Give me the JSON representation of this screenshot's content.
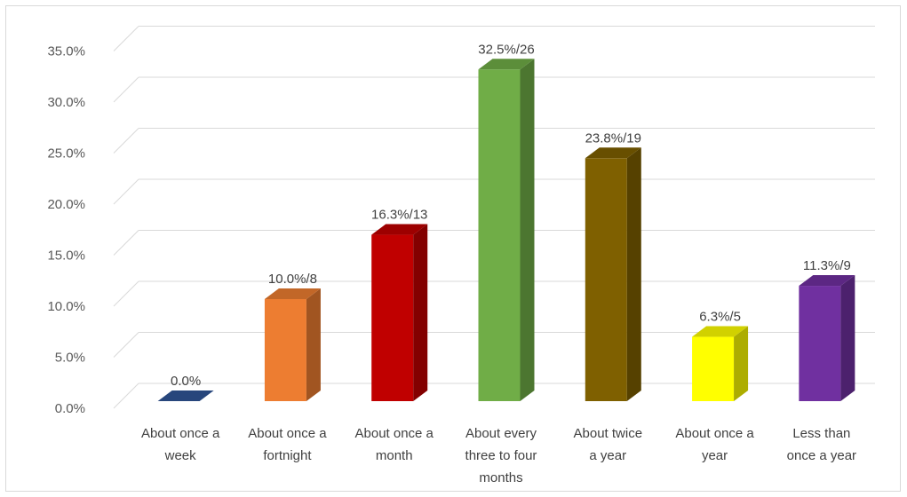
{
  "chart_data": {
    "type": "bar",
    "style": "3d-column",
    "categories": [
      [
        "About once a",
        "week"
      ],
      [
        "About once a",
        "fortnight"
      ],
      [
        "About once a",
        "month"
      ],
      [
        "About every",
        "three to four",
        "months"
      ],
      [
        "About twice",
        "a year"
      ],
      [
        "About once a",
        "year"
      ],
      [
        "Less than",
        "once a year"
      ]
    ],
    "values": [
      0.0,
      10.0,
      16.3,
      32.5,
      23.8,
      6.3,
      11.3
    ],
    "data_labels": [
      "0.0%",
      "10.0%/8",
      "16.3%/13",
      "32.5%/26",
      "23.8%/19",
      "6.3%/5",
      "11.3%/9"
    ],
    "colors": [
      "#2f5597",
      "#ed7d31",
      "#c00000",
      "#70ad47",
      "#7f6000",
      "#ffff00",
      "#7030a0"
    ],
    "y_ticks": [
      "0.0%",
      "5.0%",
      "10.0%",
      "15.0%",
      "20.0%",
      "25.0%",
      "30.0%",
      "35.0%"
    ],
    "ylim": [
      0,
      35
    ],
    "grid": true,
    "title": "",
    "xlabel": "",
    "ylabel": ""
  }
}
